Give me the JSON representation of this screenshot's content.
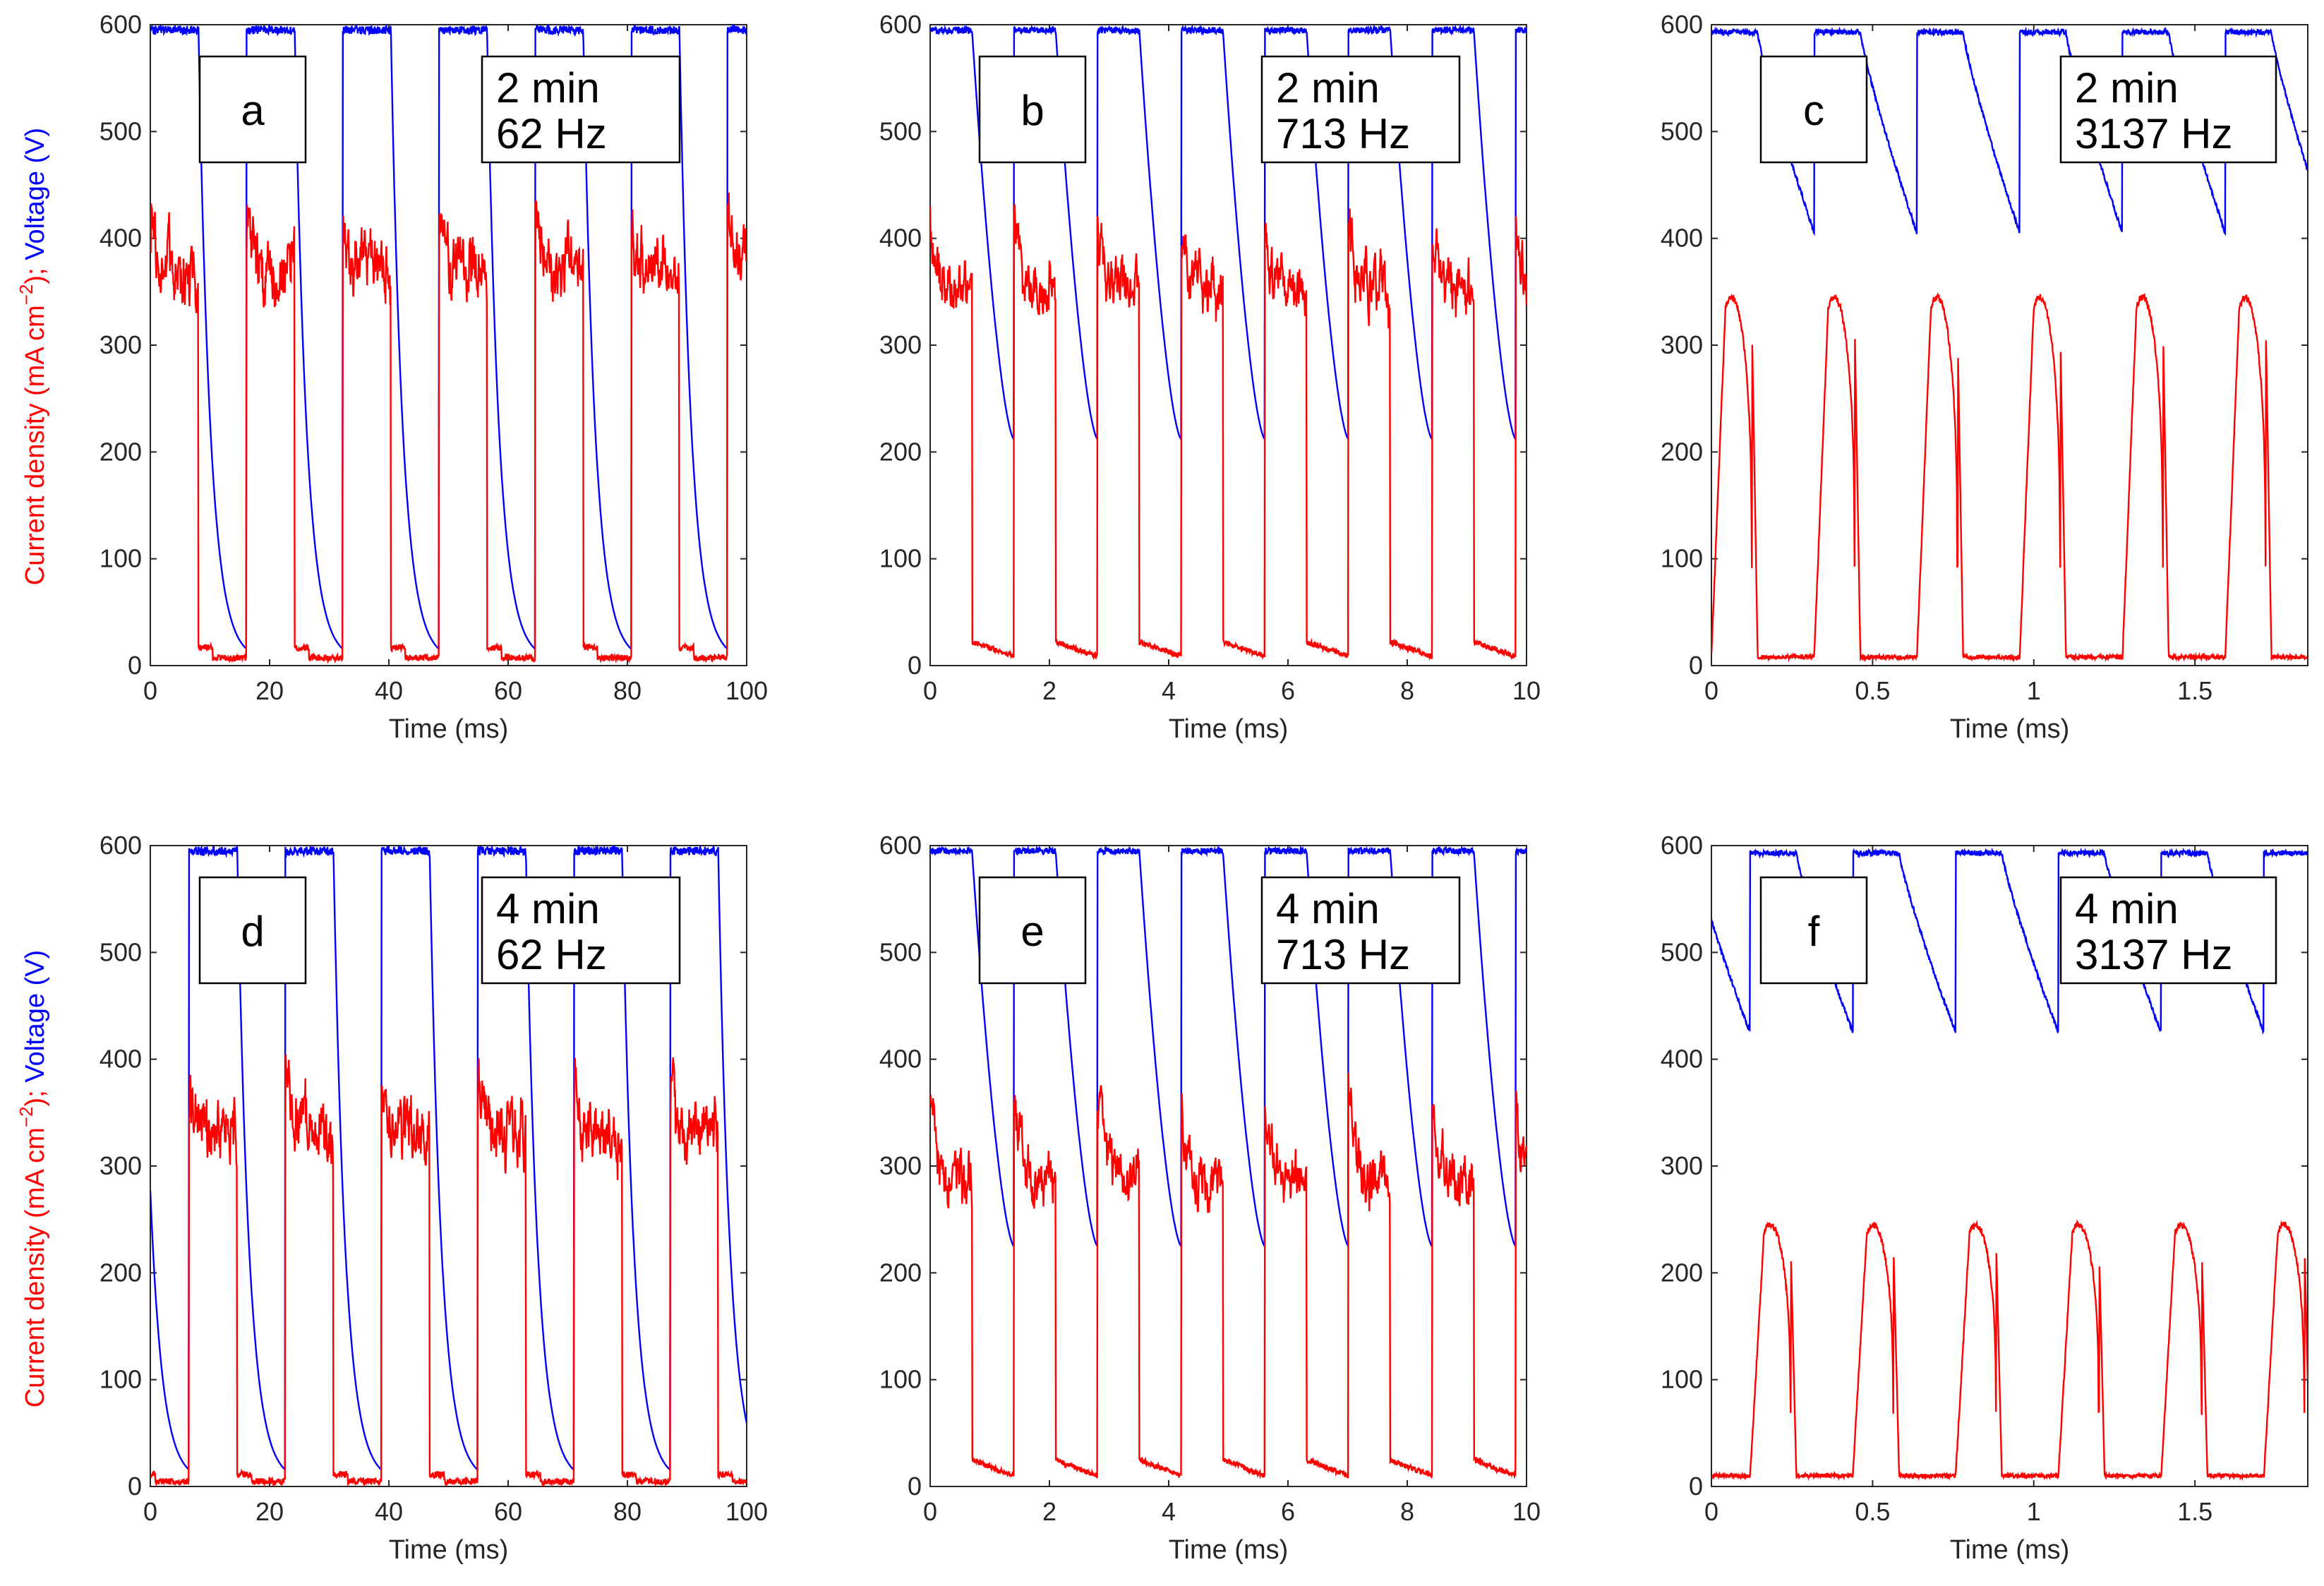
{
  "figure": {
    "ylabel_current": "Current density (mA cm",
    "ylabel_sup": "−2",
    "ylabel_mid": "); ",
    "ylabel_voltage": "Voltage (V)",
    "color_current": "#ff0000",
    "color_voltage": "#0000ff"
  },
  "chart_data": [
    {
      "type": "line",
      "id": "a",
      "letter": "a",
      "duration": "2 min",
      "freq": "62 Hz",
      "xlabel": "Time (ms)",
      "xlim": [
        0,
        100
      ],
      "ylim": [
        0,
        600
      ],
      "xticks": [
        0,
        20,
        40,
        60,
        80,
        100
      ],
      "xtick_labels": [
        "0",
        "20",
        "40",
        "60",
        "80",
        "100"
      ],
      "yticks": [
        0,
        100,
        200,
        300,
        400,
        500,
        600
      ],
      "waveform": {
        "frequency_hz": 62,
        "duty": 0.5,
        "voltage_on": 595,
        "voltage_decay_ms": 2.0,
        "current_plateau": 370,
        "current_peak": 430,
        "current_off": 12,
        "start_phase": "on"
      },
      "series": [
        {
          "name": "Current density",
          "color": "current"
        },
        {
          "name": "Voltage",
          "color": "voltage"
        }
      ]
    },
    {
      "type": "line",
      "id": "b",
      "letter": "b",
      "duration": "2 min",
      "freq": "713 Hz",
      "xlabel": "Time (ms)",
      "xlim": [
        0,
        10
      ],
      "ylim": [
        0,
        600
      ],
      "xticks": [
        0,
        2,
        4,
        6,
        8,
        10
      ],
      "xtick_labels": [
        "0",
        "2",
        "4",
        "6",
        "8",
        "10"
      ],
      "yticks": [
        0,
        100,
        200,
        300,
        400,
        500,
        600
      ],
      "waveform": {
        "frequency_hz": 713,
        "duty": 0.5,
        "voltage_on": 595,
        "voltage_min": 212,
        "current_plateau": 350,
        "current_peak": 415,
        "current_off": 22,
        "start_phase": "on"
      },
      "series": [
        {
          "name": "Current density",
          "color": "current"
        },
        {
          "name": "Voltage",
          "color": "voltage"
        }
      ]
    },
    {
      "type": "line",
      "id": "c",
      "letter": "c",
      "duration": "2 min",
      "freq": "3137 Hz",
      "xlabel": "Time (ms)",
      "xlim": [
        0,
        1.85
      ],
      "ylim": [
        0,
        600
      ],
      "xticks": [
        0,
        0.5,
        1,
        1.5
      ],
      "xtick_labels": [
        "0",
        "0.5",
        "1",
        "1.5"
      ],
      "yticks": [
        0,
        100,
        200,
        300,
        400,
        500,
        600
      ],
      "waveform": {
        "frequency_hz": 3137,
        "duty": 0.45,
        "voltage_on": 593,
        "voltage_min": 405,
        "current_plateau": 345,
        "current_off": 8,
        "start_phase": "on"
      },
      "series": [
        {
          "name": "Current density",
          "color": "current"
        },
        {
          "name": "Voltage",
          "color": "voltage"
        }
      ]
    },
    {
      "type": "line",
      "id": "d",
      "letter": "d",
      "duration": "4 min",
      "freq": "62 Hz",
      "xlabel": "Time (ms)",
      "xlim": [
        0,
        100
      ],
      "ylim": [
        0,
        600
      ],
      "xticks": [
        0,
        20,
        40,
        60,
        80,
        100
      ],
      "xtick_labels": [
        "0",
        "20",
        "40",
        "60",
        "80",
        "100"
      ],
      "yticks": [
        0,
        100,
        200,
        300,
        400,
        500,
        600
      ],
      "waveform": {
        "frequency_hz": 62,
        "duty": 0.5,
        "voltage_on": 595,
        "voltage_decay_ms": 2.0,
        "current_plateau": 330,
        "current_peak": 385,
        "current_off": 8,
        "start_phase": "off",
        "offset_ms": 6.5
      },
      "series": [
        {
          "name": "Current density",
          "color": "current"
        },
        {
          "name": "Voltage",
          "color": "voltage"
        }
      ]
    },
    {
      "type": "line",
      "id": "e",
      "letter": "e",
      "duration": "4 min",
      "freq": "713 Hz",
      "xlabel": "Time (ms)",
      "xlim": [
        0,
        10
      ],
      "ylim": [
        0,
        600
      ],
      "xticks": [
        0,
        2,
        4,
        6,
        8,
        10
      ],
      "xtick_labels": [
        "0",
        "2",
        "4",
        "6",
        "8",
        "10"
      ],
      "yticks": [
        0,
        100,
        200,
        300,
        400,
        500,
        600
      ],
      "waveform": {
        "frequency_hz": 713,
        "duty": 0.5,
        "voltage_on": 595,
        "voltage_min": 225,
        "current_plateau": 285,
        "current_peak": 370,
        "current_off": 25,
        "start_phase": "on"
      },
      "series": [
        {
          "name": "Current density",
          "color": "current"
        },
        {
          "name": "Voltage",
          "color": "voltage"
        }
      ]
    },
    {
      "type": "line",
      "id": "f",
      "letter": "f",
      "duration": "4 min",
      "freq": "3137 Hz",
      "xlabel": "Time (ms)",
      "xlim": [
        0,
        1.85
      ],
      "ylim": [
        0,
        600
      ],
      "xticks": [
        0,
        0.5,
        1,
        1.5
      ],
      "xtick_labels": [
        "0",
        "0.5",
        "1",
        "1.5"
      ],
      "yticks": [
        0,
        100,
        200,
        300,
        400,
        500,
        600
      ],
      "waveform": {
        "frequency_hz": 3137,
        "duty": 0.45,
        "voltage_on": 593,
        "voltage_min": 425,
        "current_plateau": 245,
        "current_off": 10,
        "start_phase": "off",
        "offset_ms": 0.12
      },
      "series": [
        {
          "name": "Current density",
          "color": "current"
        },
        {
          "name": "Voltage",
          "color": "voltage"
        }
      ]
    }
  ]
}
